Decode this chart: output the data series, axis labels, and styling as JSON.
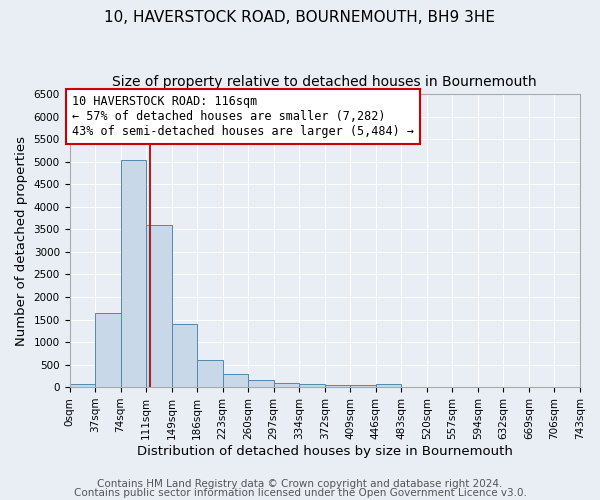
{
  "title": "10, HAVERSTOCK ROAD, BOURNEMOUTH, BH9 3HE",
  "subtitle": "Size of property relative to detached houses in Bournemouth",
  "xlabel": "Distribution of detached houses by size in Bournemouth",
  "ylabel": "Number of detached properties",
  "bin_edges": [
    0,
    37,
    74,
    111,
    148,
    185,
    222,
    259,
    296,
    333,
    370,
    407,
    444,
    481,
    518,
    555,
    592,
    629,
    666,
    703,
    740
  ],
  "bar_heights": [
    75,
    1650,
    5050,
    3600,
    1400,
    600,
    300,
    150,
    85,
    60,
    50,
    45,
    60,
    0,
    0,
    0,
    0,
    0,
    0,
    0
  ],
  "bar_color": "#c8d8e8",
  "bar_edge_color": "#5588aa",
  "tick_labels": [
    "0sqm",
    "37sqm",
    "74sqm",
    "111sqm",
    "149sqm",
    "186sqm",
    "223sqm",
    "260sqm",
    "297sqm",
    "334sqm",
    "372sqm",
    "409sqm",
    "446sqm",
    "483sqm",
    "520sqm",
    "557sqm",
    "594sqm",
    "632sqm",
    "669sqm",
    "706sqm",
    "743sqm"
  ],
  "ylim": [
    0,
    6500
  ],
  "yticks": [
    0,
    500,
    1000,
    1500,
    2000,
    2500,
    3000,
    3500,
    4000,
    4500,
    5000,
    5500,
    6000,
    6500
  ],
  "property_size": 116,
  "vline_color": "#aa2222",
  "annotation_text": "10 HAVERSTOCK ROAD: 116sqm\n← 57% of detached houses are smaller (7,282)\n43% of semi-detached houses are larger (5,484) →",
  "annotation_box_color": "#ffffff",
  "annotation_box_edge_color": "#cc0000",
  "footer_line1": "Contains HM Land Registry data © Crown copyright and database right 2024.",
  "footer_line2": "Contains public sector information licensed under the Open Government Licence v3.0.",
  "background_color": "#e8eef4",
  "grid_color": "#ffffff",
  "title_fontsize": 11,
  "subtitle_fontsize": 10,
  "axis_label_fontsize": 9.5,
  "tick_fontsize": 7.5,
  "annotation_fontsize": 8.5,
  "footer_fontsize": 7.5
}
